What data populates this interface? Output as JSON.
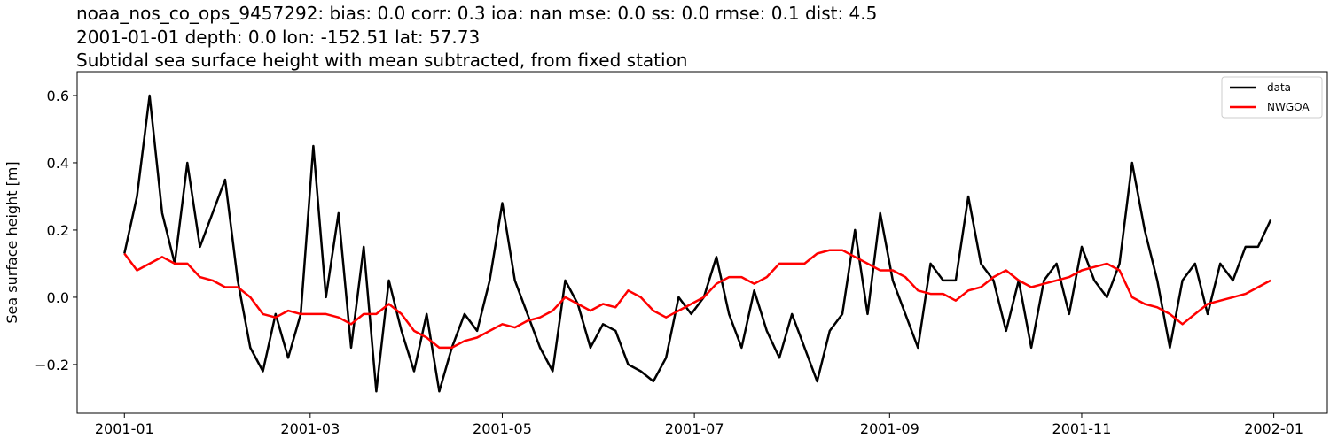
{
  "chart_data": {
    "type": "line",
    "title_lines": [
      "noaa_nos_co_ops_9457292: bias: 0.0  corr: 0.3  ioa: nan  mse: 0.0  ss: 0.0  rmse: 0.1  dist: 4.5",
      "2001-01-01 depth: 0.0 lon: -152.51 lat: 57.73",
      "Subtidal sea surface height with mean subtracted, from fixed station"
    ],
    "xlabel": "",
    "ylabel": "Sea surface height [m]",
    "xlim": [
      "2000-12-17",
      "2002-01-18"
    ],
    "ylim": [
      -0.345,
      0.671
    ],
    "xticks": [
      "2001-01",
      "2001-03",
      "2001-05",
      "2001-07",
      "2001-09",
      "2001-11",
      "2002-01"
    ],
    "yticks": [
      -0.2,
      0.0,
      0.2,
      0.4,
      0.6
    ],
    "ytick_labels": [
      "−0.2",
      "0.0",
      "0.2",
      "0.4",
      "0.6"
    ],
    "grid": false,
    "legend_position": "top-right",
    "x": [
      "2001-01-01",
      "2001-01-05",
      "2001-01-09",
      "2001-01-13",
      "2001-01-17",
      "2001-01-21",
      "2001-01-25",
      "2001-01-29",
      "2001-02-02",
      "2001-02-06",
      "2001-02-10",
      "2001-02-14",
      "2001-02-18",
      "2001-02-22",
      "2001-02-26",
      "2001-03-02",
      "2001-03-06",
      "2001-03-10",
      "2001-03-14",
      "2001-03-18",
      "2001-03-22",
      "2001-03-26",
      "2001-03-30",
      "2001-04-03",
      "2001-04-07",
      "2001-04-11",
      "2001-04-15",
      "2001-04-19",
      "2001-04-23",
      "2001-04-27",
      "2001-05-01",
      "2001-05-05",
      "2001-05-09",
      "2001-05-13",
      "2001-05-17",
      "2001-05-21",
      "2001-05-25",
      "2001-05-29",
      "2001-06-02",
      "2001-06-06",
      "2001-06-10",
      "2001-06-14",
      "2001-06-18",
      "2001-06-22",
      "2001-06-26",
      "2001-06-30",
      "2001-07-04",
      "2001-07-08",
      "2001-07-12",
      "2001-07-16",
      "2001-07-20",
      "2001-07-24",
      "2001-07-28",
      "2001-08-01",
      "2001-08-05",
      "2001-08-09",
      "2001-08-13",
      "2001-08-17",
      "2001-08-21",
      "2001-08-25",
      "2001-08-29",
      "2001-09-02",
      "2001-09-06",
      "2001-09-10",
      "2001-09-14",
      "2001-09-18",
      "2001-09-22",
      "2001-09-26",
      "2001-09-30",
      "2001-10-04",
      "2001-10-08",
      "2001-10-12",
      "2001-10-16",
      "2001-10-20",
      "2001-10-24",
      "2001-10-28",
      "2001-11-01",
      "2001-11-05",
      "2001-11-09",
      "2001-11-13",
      "2001-11-17",
      "2001-11-21",
      "2001-11-25",
      "2001-11-29",
      "2001-12-03",
      "2001-12-07",
      "2001-12-11",
      "2001-12-15",
      "2001-12-19",
      "2001-12-23",
      "2001-12-27",
      "2001-12-31"
    ],
    "series": [
      {
        "name": "data",
        "color": "#000000",
        "values": [
          0.13,
          0.3,
          0.6,
          0.25,
          0.1,
          0.4,
          0.15,
          0.25,
          0.35,
          0.05,
          -0.15,
          -0.22,
          -0.05,
          -0.18,
          -0.05,
          0.45,
          0.0,
          0.25,
          -0.15,
          0.15,
          -0.28,
          0.05,
          -0.1,
          -0.22,
          -0.05,
          -0.28,
          -0.15,
          -0.05,
          -0.1,
          0.05,
          0.28,
          0.05,
          -0.05,
          -0.15,
          -0.22,
          0.05,
          -0.02,
          -0.15,
          -0.08,
          -0.1,
          -0.2,
          -0.22,
          -0.25,
          -0.18,
          0.0,
          -0.05,
          0.0,
          0.12,
          -0.05,
          -0.15,
          0.02,
          -0.1,
          -0.18,
          -0.05,
          -0.15,
          -0.25,
          -0.1,
          -0.05,
          0.2,
          -0.05,
          0.25,
          0.05,
          -0.05,
          -0.15,
          0.1,
          0.05,
          0.05,
          0.3,
          0.1,
          0.05,
          -0.1,
          0.05,
          -0.15,
          0.05,
          0.1,
          -0.05,
          0.15,
          0.05,
          0.0,
          0.1,
          0.4,
          0.2,
          0.05,
          -0.15,
          0.05,
          0.1,
          -0.05,
          0.1,
          0.05,
          0.15,
          0.15,
          0.23
        ]
      },
      {
        "name": "NWGOA",
        "color": "#ff0000",
        "values": [
          0.13,
          0.08,
          0.1,
          0.12,
          0.1,
          0.1,
          0.06,
          0.05,
          0.03,
          0.03,
          0.0,
          -0.05,
          -0.06,
          -0.04,
          -0.05,
          -0.05,
          -0.05,
          -0.06,
          -0.08,
          -0.05,
          -0.05,
          -0.02,
          -0.05,
          -0.1,
          -0.12,
          -0.15,
          -0.15,
          -0.13,
          -0.12,
          -0.1,
          -0.08,
          -0.09,
          -0.07,
          -0.06,
          -0.04,
          0.0,
          -0.02,
          -0.04,
          -0.02,
          -0.03,
          0.02,
          0.0,
          -0.04,
          -0.06,
          -0.04,
          -0.02,
          0.0,
          0.04,
          0.06,
          0.06,
          0.04,
          0.06,
          0.1,
          0.1,
          0.1,
          0.13,
          0.14,
          0.14,
          0.12,
          0.1,
          0.08,
          0.08,
          0.06,
          0.02,
          0.01,
          0.01,
          -0.01,
          0.02,
          0.03,
          0.06,
          0.08,
          0.05,
          0.03,
          0.04,
          0.05,
          0.06,
          0.08,
          0.09,
          0.1,
          0.08,
          0.0,
          -0.02,
          -0.03,
          -0.05,
          -0.08,
          -0.05,
          -0.02,
          -0.01,
          0.0,
          0.01,
          0.03,
          0.05
        ]
      }
    ]
  }
}
